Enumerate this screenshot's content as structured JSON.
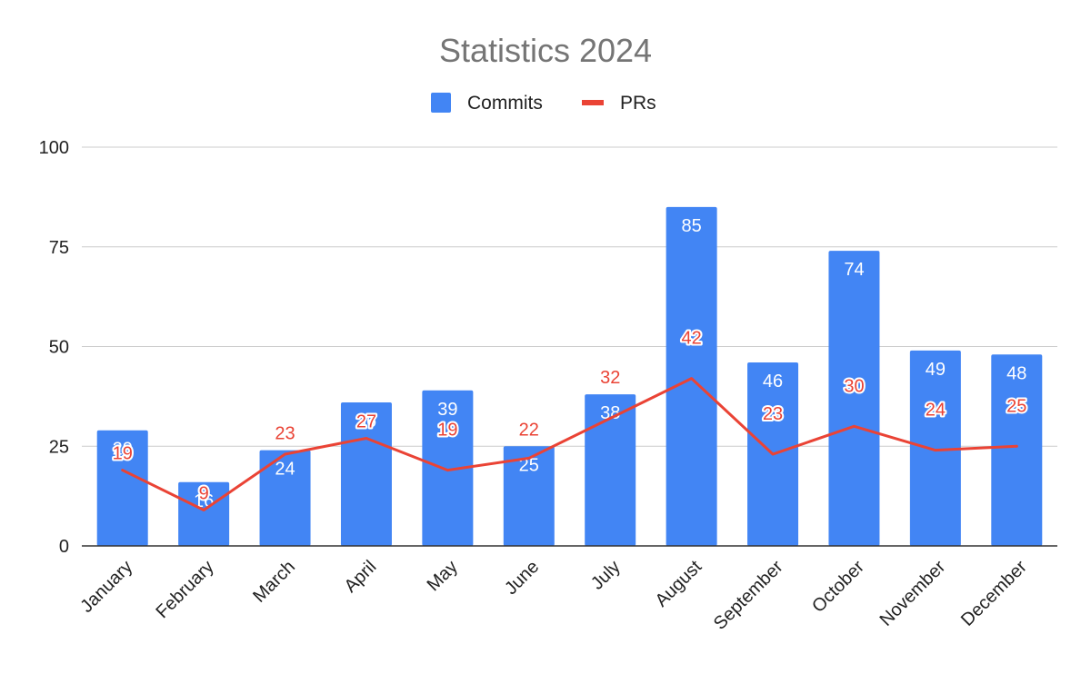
{
  "chart_data": {
    "type": "bar",
    "title": "Statistics 2024",
    "xlabel": "",
    "ylabel": "",
    "ylim": [
      0,
      100
    ],
    "yticks": [
      0,
      25,
      50,
      75,
      100
    ],
    "grid": true,
    "legend_position": "top-center",
    "categories": [
      "January",
      "February",
      "March",
      "April",
      "May",
      "June",
      "July",
      "August",
      "September",
      "October",
      "November",
      "December"
    ],
    "series": [
      {
        "name": "Commits",
        "type": "bar",
        "color": "#4285F4",
        "values": [
          29,
          16,
          24,
          36,
          39,
          25,
          38,
          85,
          46,
          74,
          49,
          48
        ]
      },
      {
        "name": "PRs",
        "type": "line",
        "color": "#EA4335",
        "values": [
          19,
          9,
          23,
          27,
          19,
          22,
          32,
          42,
          23,
          30,
          24,
          25
        ]
      }
    ]
  }
}
